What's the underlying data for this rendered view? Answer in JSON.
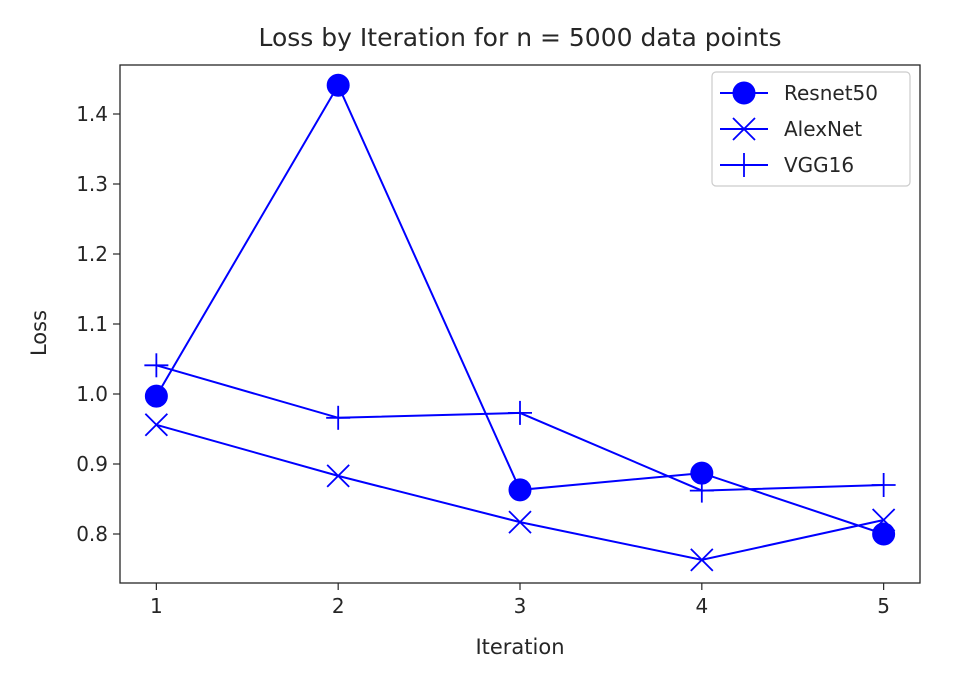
{
  "chart_data": {
    "type": "line",
    "title": "Loss by Iteration for n = 5000 data points",
    "xlabel": "Iteration",
    "ylabel": "Loss",
    "x": [
      1,
      2,
      3,
      4,
      5
    ],
    "xlim": [
      0.8,
      5.2
    ],
    "ylim": [
      0.73,
      1.47
    ],
    "xticks": [
      "1",
      "2",
      "3",
      "4",
      "5"
    ],
    "yticks": [
      "0.8",
      "0.9",
      "1.0",
      "1.1",
      "1.2",
      "1.3",
      "1.4"
    ],
    "grid": false,
    "legend_position": "top-right",
    "color": "#0000ff",
    "series": [
      {
        "name": "Resnet50",
        "marker": "circle",
        "values": [
          0.997,
          1.441,
          0.863,
          0.887,
          0.8
        ]
      },
      {
        "name": "AlexNet",
        "marker": "x",
        "values": [
          0.956,
          0.883,
          0.817,
          0.763,
          0.82
        ]
      },
      {
        "name": "VGG16",
        "marker": "plus",
        "values": [
          1.041,
          0.966,
          0.973,
          0.862,
          0.87
        ]
      }
    ]
  }
}
